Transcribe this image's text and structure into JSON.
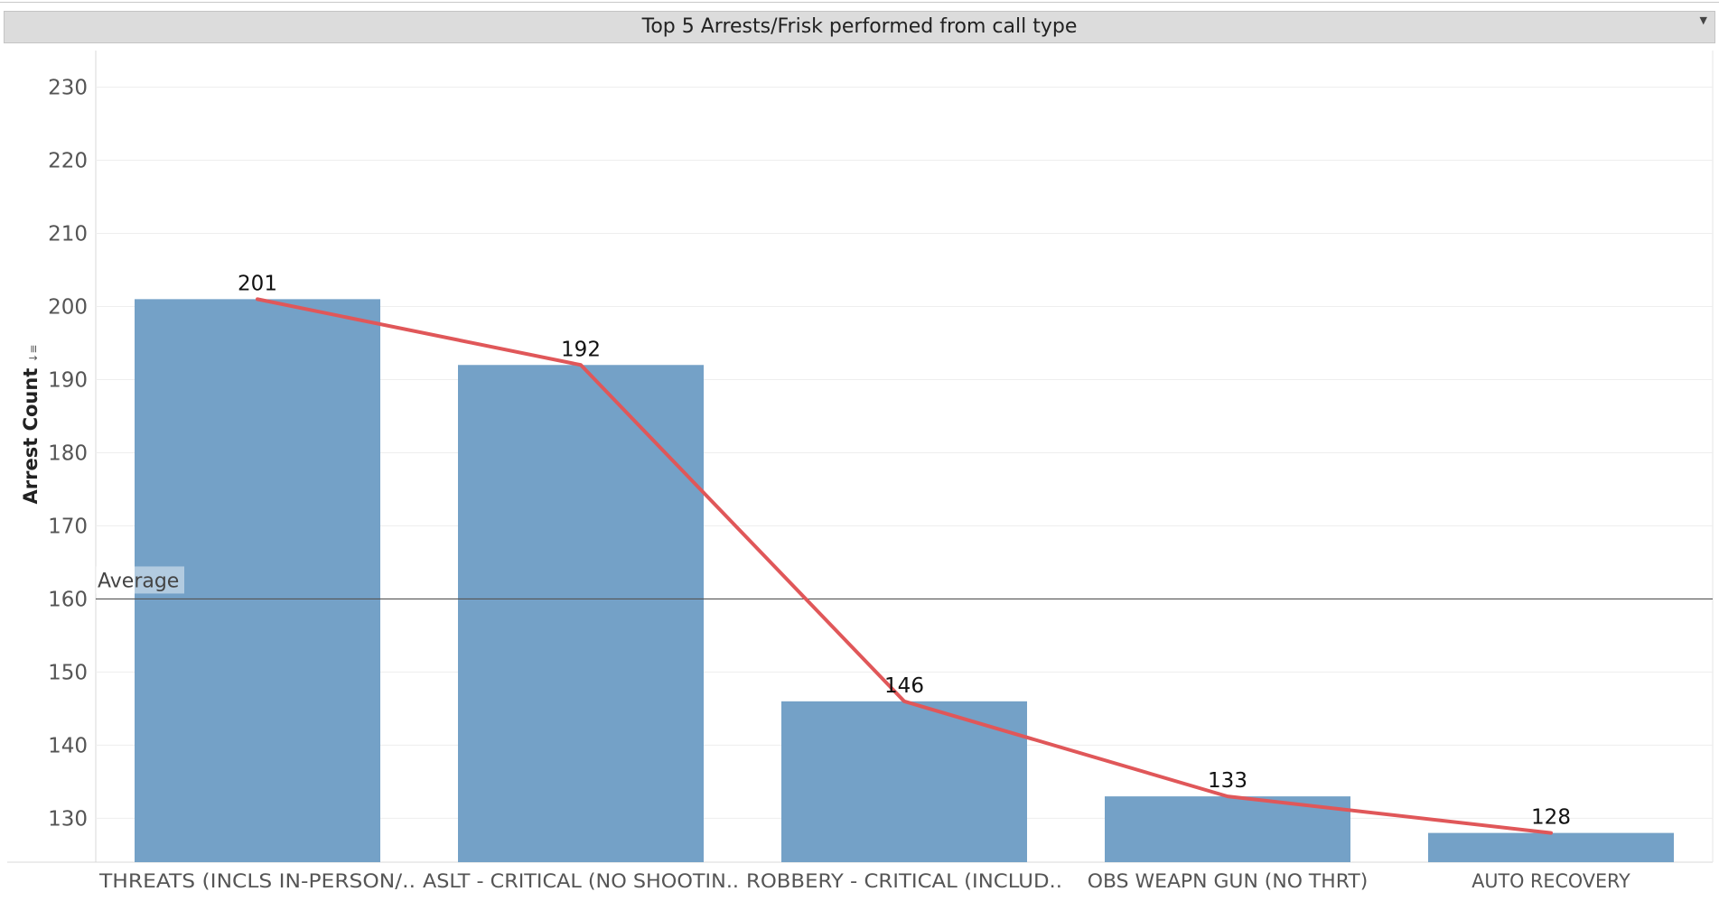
{
  "title": "Top 5 Arrests/Frisk performed from  call type",
  "reference_line": {
    "label": "Average",
    "value": 160
  },
  "icons": {
    "title_menu": "chevron-down-icon",
    "axis_sort": "sort-descending-icon"
  },
  "colors": {
    "bar": "#74a1c7",
    "trend_line": "#e05759",
    "reference_line": "#555555",
    "gridline": "#eeeeee"
  },
  "chart_data": {
    "type": "bar",
    "title": "Top 5 Arrests/Frisk performed from  call type",
    "xlabel": "",
    "ylabel": "Arrest Count",
    "categories": [
      "THREATS (INCLS IN-PERSON/..",
      "ASLT - CRITICAL (NO SHOOTIN..",
      "ROBBERY - CRITICAL (INCLUD..",
      "OBS WEAPN GUN (NO THRT)",
      "AUTO RECOVERY"
    ],
    "values": [
      201,
      192,
      146,
      133,
      128
    ],
    "data_labels": [
      "201",
      "192",
      "146",
      "133",
      "128"
    ],
    "overlay_line": {
      "type": "line",
      "values": [
        201,
        192,
        146,
        133,
        128
      ]
    },
    "yticks": [
      130,
      140,
      150,
      160,
      170,
      180,
      190,
      200,
      210,
      220,
      230
    ],
    "ytick_labels": [
      "130",
      "140",
      "150",
      "160",
      "170",
      "180",
      "190",
      "200",
      "210",
      "220",
      "230"
    ],
    "ylim": [
      124,
      235
    ],
    "grid": true
  }
}
